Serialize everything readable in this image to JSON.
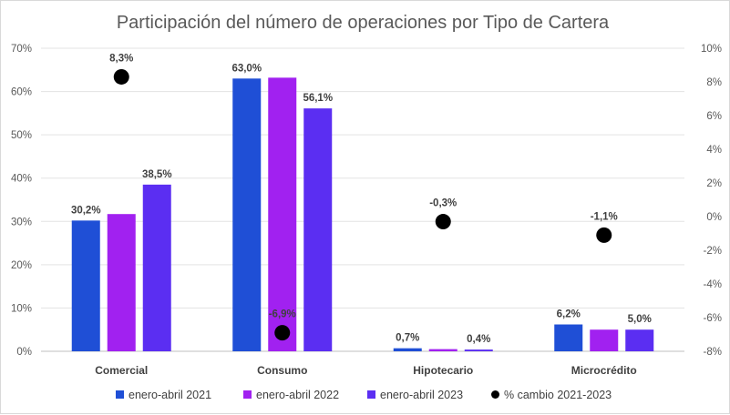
{
  "chart_data": {
    "type": "bar",
    "title": "Participación del número de operaciones por Tipo de Cartera",
    "categories": [
      "Comercial",
      "Consumo",
      "Hipotecario",
      "Microcrédito"
    ],
    "series": [
      {
        "name": "enero-abril 2021",
        "color": "#1f4fd6",
        "values": [
          30.2,
          63.0,
          0.7,
          6.2
        ]
      },
      {
        "name": "enero-abril 2022",
        "color": "#a121f0",
        "values": [
          31.7,
          63.2,
          0.5,
          5.0
        ]
      },
      {
        "name": "enero-abril 2023",
        "color": "#5b2ef2",
        "values": [
          38.5,
          56.1,
          0.4,
          5.0
        ]
      }
    ],
    "data_labels": [
      {
        "series": 0,
        "category": 0,
        "text": "30,2%"
      },
      {
        "series": 2,
        "category": 0,
        "text": "38,5%"
      },
      {
        "series": 0,
        "category": 1,
        "text": "63,0%"
      },
      {
        "series": 2,
        "category": 1,
        "text": "56,1%"
      },
      {
        "series": 0,
        "category": 2,
        "text": "0,7%"
      },
      {
        "series": 2,
        "category": 2,
        "text": "0,4%"
      },
      {
        "series": 0,
        "category": 3,
        "text": "6,2%"
      },
      {
        "series": 2,
        "category": 3,
        "text": "5,0%"
      }
    ],
    "change_series": {
      "name": "% cambio 2021-2023",
      "color": "#000000",
      "axis": "secondary",
      "values": [
        8.3,
        -6.9,
        -0.3,
        -1.1
      ],
      "labels": [
        "8,3%",
        "-6,9%",
        "-0,3%",
        "-1,1%"
      ]
    },
    "y_primary": {
      "min": 0,
      "max": 70,
      "step": 10,
      "ticks": [
        "0%",
        "10%",
        "20%",
        "30%",
        "40%",
        "50%",
        "60%",
        "70%"
      ]
    },
    "y_secondary": {
      "min": -8,
      "max": 10,
      "step": 2,
      "ticks": [
        "-8%",
        "-6%",
        "-4%",
        "-2%",
        "0%",
        "2%",
        "4%",
        "6%",
        "8%",
        "10%"
      ]
    },
    "grid": true,
    "legend_position": "bottom"
  }
}
